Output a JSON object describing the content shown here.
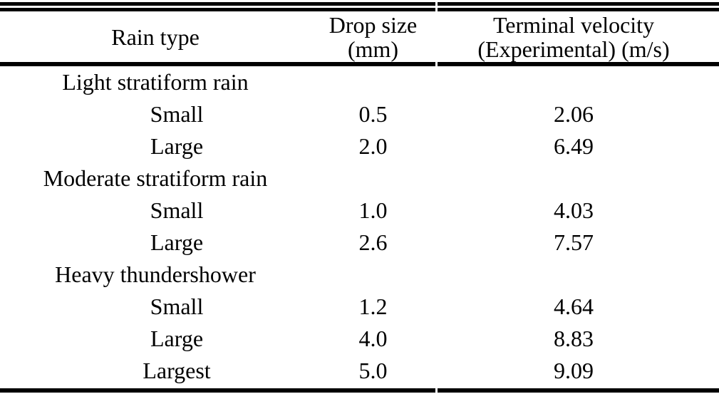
{
  "table": {
    "columns": {
      "rain_type": {
        "line1": "Rain type"
      },
      "drop_size": {
        "line1": "Drop size",
        "line2": "(mm)"
      },
      "terminal_velocity": {
        "line1": "Terminal velocity",
        "line2": "(Experimental) (m/s)"
      }
    },
    "groups": [
      {
        "name": "Light stratiform rain",
        "rows": [
          {
            "label": "Small",
            "drop_size": "0.5",
            "terminal_velocity": "2.06"
          },
          {
            "label": "Large",
            "drop_size": "2.0",
            "terminal_velocity": "6.49"
          }
        ]
      },
      {
        "name": "Moderate stratiform rain",
        "rows": [
          {
            "label": "Small",
            "drop_size": "1.0",
            "terminal_velocity": "4.03"
          },
          {
            "label": "Large",
            "drop_size": "2.6",
            "terminal_velocity": "7.57"
          }
        ]
      },
      {
        "name": "Heavy thundershower",
        "rows": [
          {
            "label": "Small",
            "drop_size": "1.2",
            "terminal_velocity": "4.64"
          },
          {
            "label": "Large",
            "drop_size": "4.0",
            "terminal_velocity": "8.83"
          },
          {
            "label": "Largest",
            "drop_size": "5.0",
            "terminal_velocity": "9.09"
          }
        ]
      }
    ],
    "colors": {
      "rule": "#000000",
      "text": "#000000",
      "background": "#ffffff"
    }
  }
}
